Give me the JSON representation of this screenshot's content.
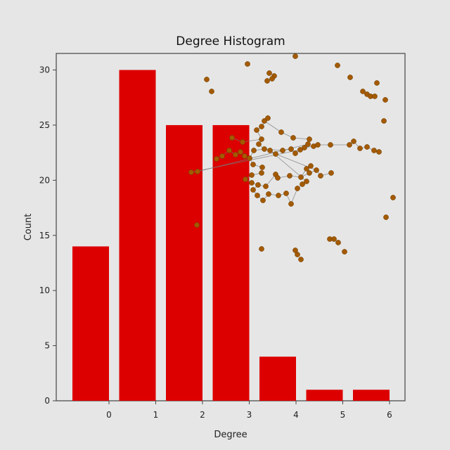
{
  "chart_data": {
    "type": "bar",
    "title": "Degree Histogram",
    "xlabel": "Degree",
    "ylabel": "Count",
    "categories": [
      "0",
      "1",
      "2",
      "3",
      "4",
      "5",
      "6"
    ],
    "values": [
      14,
      30,
      25,
      25,
      4,
      1,
      1
    ],
    "xticks": [
      0,
      1,
      2,
      3,
      4,
      5,
      6
    ],
    "yticks": [
      0,
      5,
      10,
      15,
      20,
      25,
      30
    ],
    "ylim": [
      0,
      31.5
    ],
    "bar_color": "#dd0000",
    "grid": false,
    "inset": {
      "type": "network",
      "node_color": "#a35a00",
      "edge_color": "#777777"
    }
  }
}
